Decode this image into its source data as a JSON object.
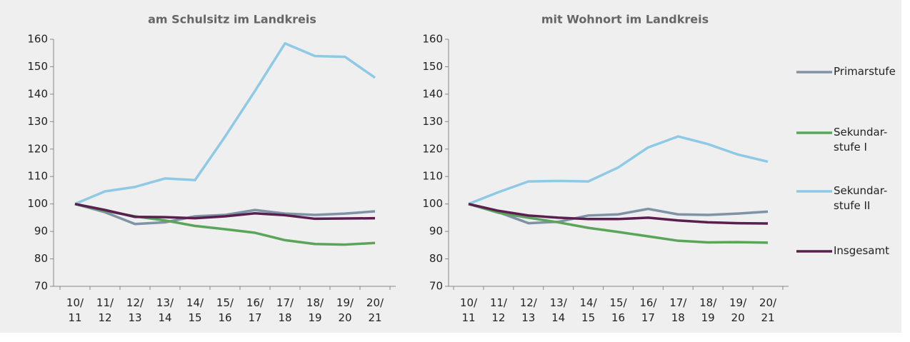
{
  "chart_data": [
    {
      "type": "line",
      "title": "am Schulsitz im Landkreis",
      "categories": [
        "10/ 11",
        "11/ 12",
        "12/ 13",
        "13/ 14",
        "14/ 15",
        "15/ 16",
        "16/ 17",
        "17/ 18",
        "18/ 19",
        "19/ 20",
        "20/ 21"
      ],
      "ylim": [
        70,
        160
      ],
      "yticks": [
        70,
        80,
        90,
        100,
        110,
        120,
        130,
        140,
        150,
        160
      ],
      "series": [
        {
          "name": "Primarstufe",
          "color": "#7f93a6",
          "values": [
            100,
            97,
            92.7,
            93.3,
            95.5,
            96,
            97.8,
            96.5,
            96,
            96.5,
            97.3
          ]
        },
        {
          "name": "Sekundar-stufe I",
          "color": "#5aa55a",
          "values": [
            100,
            97.5,
            95.5,
            94,
            92,
            90.8,
            89.5,
            86.8,
            85.4,
            85.2,
            85.8
          ]
        },
        {
          "name": "Sekundar-stufe II",
          "color": "#8ecae6",
          "values": [
            100,
            104.6,
            106.2,
            109.3,
            108.7,
            124.5,
            141.2,
            158.5,
            153.9,
            153.6,
            146
          ]
        },
        {
          "name": "Insgesamt",
          "color": "#5a1f4f",
          "values": [
            100,
            97.8,
            95.3,
            95.2,
            94.8,
            95.5,
            96.6,
            95.9,
            94.6,
            94.7,
            94.8
          ]
        }
      ]
    },
    {
      "type": "line",
      "title": "mit Wohnort im Landkreis",
      "categories": [
        "10/ 11",
        "11/ 12",
        "12/ 13",
        "13/ 14",
        "14/ 15",
        "15/ 16",
        "16/ 17",
        "17/ 18",
        "18/ 19",
        "19/ 20",
        "20/ 21"
      ],
      "ylim": [
        70,
        160
      ],
      "yticks": [
        70,
        80,
        90,
        100,
        110,
        120,
        130,
        140,
        150,
        160
      ],
      "series": [
        {
          "color": "#7f93a6",
          "values": [
            100,
            97,
            93,
            93.5,
            95.8,
            96.2,
            98.2,
            96.2,
            96,
            96.5,
            97.2
          ]
        },
        {
          "color": "#5aa55a",
          "values": [
            100,
            96.8,
            95,
            93.3,
            91.3,
            89.8,
            88.2,
            86.6,
            86,
            86.1,
            85.9
          ]
        },
        {
          "color": "#8ecae6",
          "values": [
            100,
            104.3,
            108.2,
            108.4,
            108.2,
            113.3,
            120.6,
            124.6,
            121.8,
            118,
            115.4
          ]
        },
        {
          "color": "#5a1f4f",
          "values": [
            100,
            97.5,
            95.8,
            95,
            94.5,
            94.5,
            95,
            94,
            93.3,
            93,
            92.9
          ]
        }
      ]
    }
  ]
}
